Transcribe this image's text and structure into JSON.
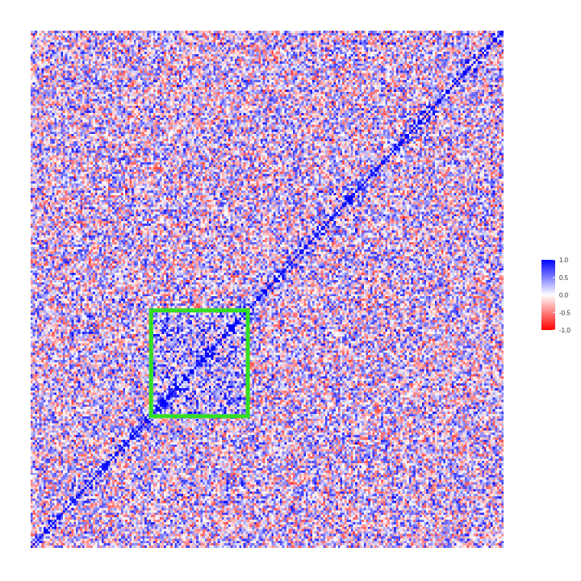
{
  "chart_data": {
    "type": "heatmap",
    "title": "",
    "xlabel": "",
    "ylabel": "",
    "matrix_size": 220,
    "value_range": [
      -1.0,
      1.0
    ],
    "diagonal_value": 1.0,
    "axis_orientation": "diagonal runs from bottom-left to top-right",
    "colorscale": {
      "low": "#ff0000",
      "mid": "#ffffff",
      "high": "#0000ff"
    },
    "colorbar": {
      "placement": "right",
      "ticks": [
        {
          "value": 1.0,
          "label": "1.0"
        },
        {
          "value": 0.5,
          "label": "0.5"
        },
        {
          "value": 0.0,
          "label": "0.0"
        },
        {
          "value": -0.5,
          "label": "-0.5"
        },
        {
          "value": -1.0,
          "label": "-1.0"
        }
      ]
    },
    "highlight_region": {
      "shape": "square",
      "color": "#33dd22",
      "row_range": [
        56,
        100
      ],
      "col_range": [
        56,
        100
      ]
    }
  }
}
